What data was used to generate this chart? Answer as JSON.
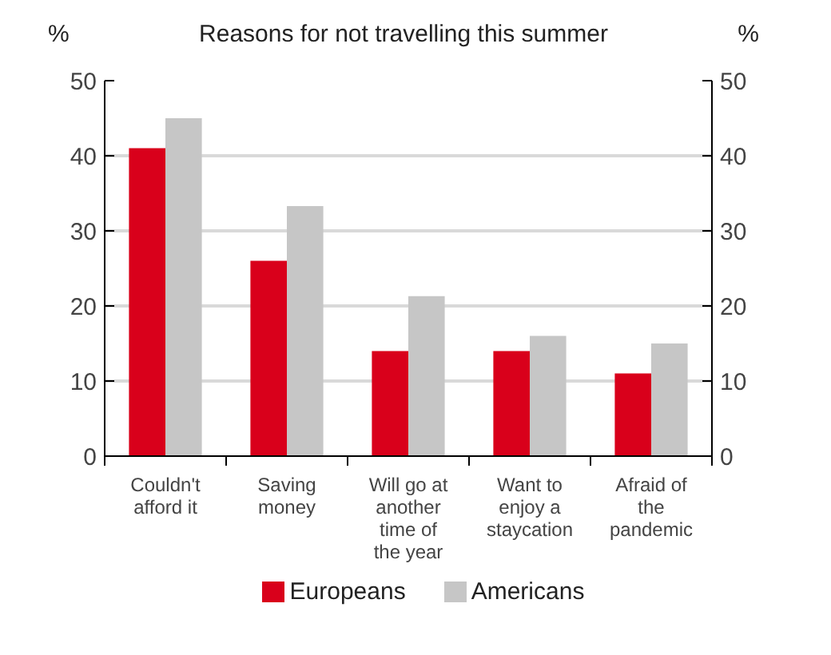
{
  "chart_data": {
    "type": "bar",
    "title": "Reasons for not travelling this summer",
    "ylabel": "%",
    "y2label": "%",
    "categories": [
      "Couldn't\nafford it",
      "Saving\nmoney",
      "Will go at\nanother\ntime of\nthe year",
      "Want to\nenjoy a\nstaycation",
      "Afraid of\nthe\npandemic"
    ],
    "series": [
      {
        "name": "Europeans",
        "color": "#d9001b",
        "values": [
          41,
          26,
          14,
          14,
          11
        ]
      },
      {
        "name": "Americans",
        "color": "#c6c6c6",
        "values": [
          45,
          33.3,
          21.3,
          16,
          15
        ]
      }
    ],
    "ylim": [
      0,
      50
    ],
    "yticks": [
      0,
      10,
      20,
      30,
      40,
      50
    ],
    "y2lim": [
      0,
      50
    ],
    "y2ticks": [
      0,
      10,
      20,
      30,
      40,
      50
    ],
    "grid": "y",
    "legend": "bottom"
  }
}
